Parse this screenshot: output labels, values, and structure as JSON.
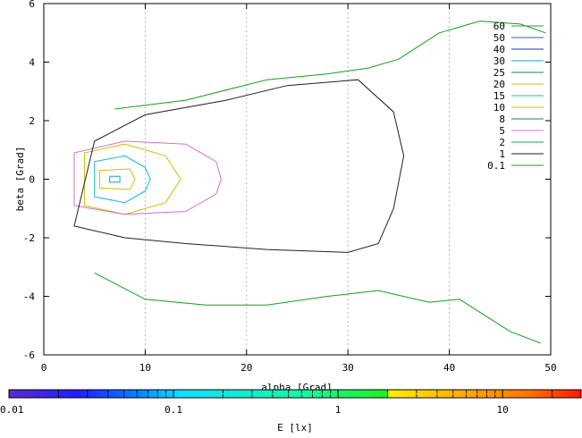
{
  "chart_data": {
    "type": "heatmap",
    "title": "",
    "xlabel": "alpha [Grad]",
    "ylabel": "beta [Grad]",
    "xlim": [
      0,
      50
    ],
    "ylim": [
      6,
      -6
    ],
    "x_ticks": [
      "0",
      "10",
      "20",
      "30",
      "40",
      "50"
    ],
    "y_ticks": [
      "-6",
      "-4",
      "-2",
      "0",
      "2",
      "4",
      "6"
    ],
    "grid": true,
    "colorbar": {
      "label": "E [lx]",
      "scale": "log",
      "range": [
        0.01,
        30
      ],
      "ticks": [
        "0.01",
        "0.1",
        "1",
        "10"
      ],
      "colors": [
        "#5a2ccc",
        "#1f1fff",
        "#0a7aff",
        "#10e0ff",
        "#18f6a0",
        "#22ee22",
        "#ffee00",
        "#ffb300",
        "#ff7a00",
        "#ff1a00"
      ]
    },
    "legend": {
      "placement": "top-right",
      "entries": [
        "60",
        "50",
        "40",
        "30",
        "25",
        "20",
        "15",
        "10",
        "8",
        "5",
        "2",
        "1",
        "0.1"
      ],
      "colors": [
        "#3a9a3a",
        "#2060d0",
        "#1030c0",
        "#10a0d0",
        "#208040",
        "#d0c000",
        "#10c0c0",
        "#d0c000",
        "#208040",
        "#d070d0",
        "#20a060",
        "#202020",
        "#10a020"
      ]
    },
    "peak": {
      "alpha": 7,
      "beta": 0,
      "value": 30
    },
    "contours": [
      {
        "level": "30",
        "points": [
          [
            6.5,
            -0.1
          ],
          [
            7.5,
            -0.1
          ],
          [
            7.5,
            0.1
          ],
          [
            6.5,
            0.1
          ]
        ]
      },
      {
        "level": "20",
        "points": [
          [
            5.5,
            -0.3
          ],
          [
            8.5,
            -0.35
          ],
          [
            9,
            0
          ],
          [
            8.5,
            0.35
          ],
          [
            5.5,
            0.3
          ]
        ]
      },
      {
        "level": "15",
        "points": [
          [
            5,
            -0.6
          ],
          [
            8,
            -0.8
          ],
          [
            10,
            -0.4
          ],
          [
            10.5,
            0
          ],
          [
            10,
            0.4
          ],
          [
            8,
            0.8
          ],
          [
            5,
            0.6
          ]
        ]
      },
      {
        "level": "10",
        "points": [
          [
            4,
            -0.9
          ],
          [
            8,
            -1.2
          ],
          [
            12,
            -0.8
          ],
          [
            13.5,
            0
          ],
          [
            12,
            0.8
          ],
          [
            8,
            1.2
          ],
          [
            4,
            0.9
          ]
        ]
      },
      {
        "level": "5",
        "points": [
          [
            3,
            -0.9
          ],
          [
            8,
            -1.2
          ],
          [
            14,
            -1.1
          ],
          [
            17,
            -0.5
          ],
          [
            17.5,
            0
          ],
          [
            17,
            0.6
          ],
          [
            14,
            1.2
          ],
          [
            8,
            1.3
          ],
          [
            3,
            0.9
          ]
        ]
      },
      {
        "level": "1",
        "points": [
          [
            3,
            -1.6
          ],
          [
            8,
            -2.0
          ],
          [
            14,
            -2.2
          ],
          [
            22,
            -2.4
          ],
          [
            30,
            -2.5
          ],
          [
            33,
            -2.2
          ],
          [
            34.5,
            -1.0
          ],
          [
            35.5,
            0.8
          ],
          [
            34.5,
            2.3
          ],
          [
            31,
            3.4
          ],
          [
            24,
            3.2
          ],
          [
            18,
            2.7
          ],
          [
            10,
            2.2
          ],
          [
            5,
            1.3
          ]
        ]
      },
      {
        "level": "0.1",
        "points": [
          [
            5,
            -3.2
          ],
          [
            10,
            -4.1
          ],
          [
            16,
            -4.3
          ],
          [
            22,
            -4.3
          ],
          [
            28,
            -4.0
          ],
          [
            33,
            -3.8
          ],
          [
            38,
            -4.2
          ],
          [
            41,
            -4.1
          ],
          [
            46,
            -5.2
          ],
          [
            49,
            -5.6
          ]
        ]
      },
      {
        "level": "0.1",
        "points": [
          [
            7,
            2.4
          ],
          [
            14,
            2.7
          ],
          [
            22,
            3.4
          ],
          [
            28,
            3.6
          ],
          [
            32,
            3.8
          ],
          [
            35,
            4.1
          ],
          [
            39,
            5.0
          ],
          [
            43,
            5.4
          ],
          [
            47,
            5.3
          ],
          [
            49.5,
            5.0
          ]
        ]
      }
    ]
  },
  "colorbar_label": "E [lx]"
}
